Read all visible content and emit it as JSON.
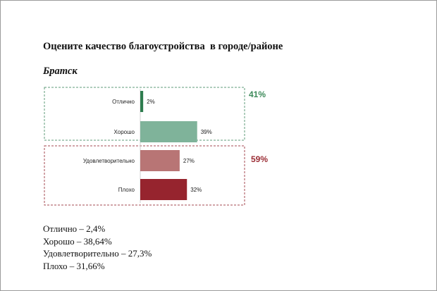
{
  "slide": {
    "title": "Оцените качество благоустройства  в городе/районе",
    "subtitle": "Братск"
  },
  "chart_data": {
    "type": "bar",
    "orientation": "horizontal",
    "categories": [
      "Отлично",
      "Хорошо",
      "Удовлетворительно",
      "Плохо"
    ],
    "values": [
      2,
      39,
      27,
      32
    ],
    "value_labels": [
      "2%",
      "39%",
      "27%",
      "32%"
    ],
    "colors": [
      "#2e7d4f",
      "#7fb39a",
      "#b87575",
      "#96242e"
    ],
    "groups": [
      {
        "label": "41%",
        "value": 41,
        "members": [
          "Отлично",
          "Хорошо"
        ],
        "color": "#3d8a5a"
      },
      {
        "label": "59%",
        "value": 59,
        "members": [
          "Удовлетворительно",
          "Плохо"
        ],
        "color": "#9b2d35"
      }
    ],
    "xlim": [
      0,
      100
    ],
    "grid": false,
    "legend": "none"
  },
  "notes": [
    "Отлично – 2,4%",
    "Хорошо – 38,64%",
    "Удовлетворительно – 27,3%",
    "Плохо – 31,66%"
  ]
}
